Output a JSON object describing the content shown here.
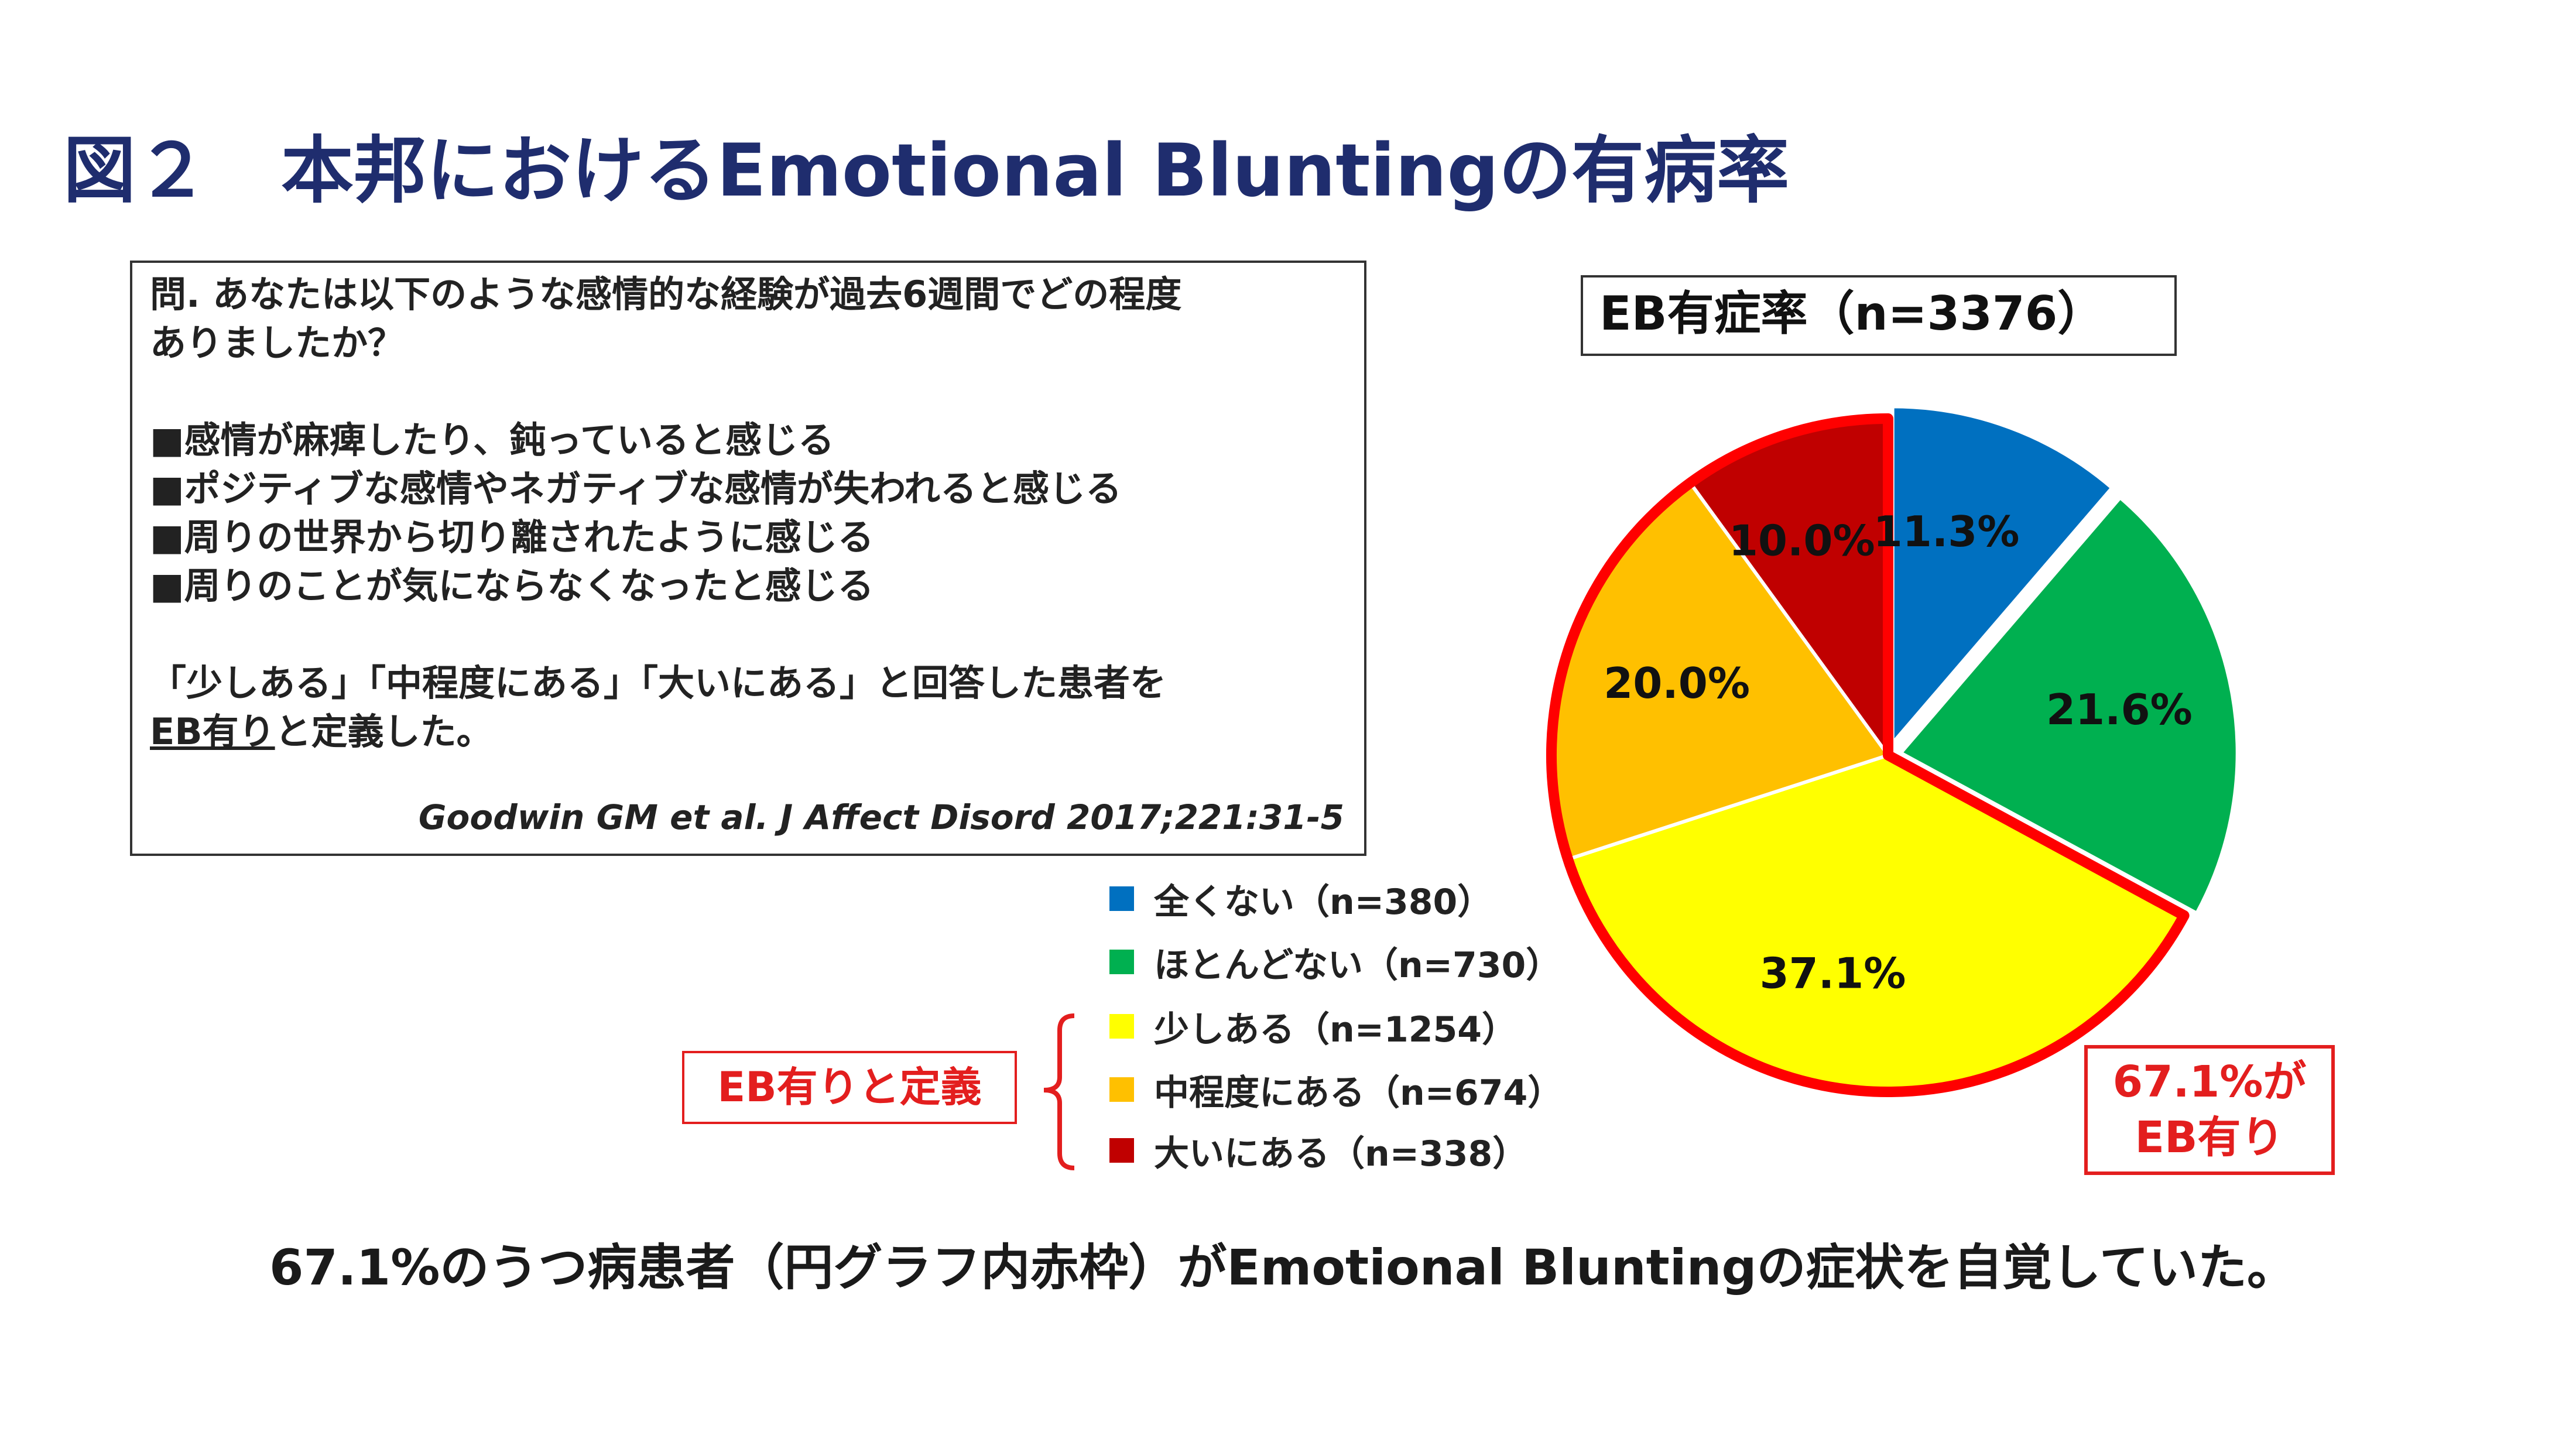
{
  "title": "図２　本邦におけるEmotional Bluntingの有病率",
  "question": {
    "lines": [
      "問. あなたは以下のような感情的な経験が過去6週間でどの程度",
      "ありましたか？",
      "■感情が麻痺したり、鈍っていると感じる",
      "■ポジティブな感情やネガティブな感情が失われると感じる",
      "■周りの世界から切り離されたように感じる",
      "■周りのことが気にならなくなったと感じる",
      "「少しある」「中程度にある」「大いにある」と回答した患者を"
    ],
    "definition_underlined": "EB有り",
    "definition_rest": "と定義した。",
    "citation": "Goodwin GM et al. J Affect Disord 2017;221:31-5"
  },
  "chart_data": {
    "type": "pie",
    "title": "EB有症率（n=3376）",
    "slices": [
      {
        "label": "全くない（n=380）",
        "value": 11.3,
        "display": "11.3%",
        "color": "#0070c0",
        "eb": false
      },
      {
        "label": "ほとんどない（n=730）",
        "value": 21.6,
        "display": "21.6%",
        "color": "#00b050",
        "eb": false
      },
      {
        "label": "少しある（n=1254）",
        "value": 37.1,
        "display": "37.1%",
        "color": "#ffff00",
        "eb": true
      },
      {
        "label": "中程度にある（n=674）",
        "value": 20.0,
        "display": "20.0%",
        "color": "#ffc000",
        "eb": true
      },
      {
        "label": "大いにある（n=338）",
        "value": 10.0,
        "display": "10.0%",
        "color": "#c00000",
        "eb": true
      }
    ],
    "start": "12 o'clock",
    "direction": "clockwise",
    "highlight_color": "#ff0000"
  },
  "eb_definition_label": "EB有りと定義",
  "eb_rate_lines": [
    "67.1%が",
    "EB有り"
  ],
  "conclusion": "67.1%のうつ病患者（円グラフ内赤枠）がEmotional Bluntingの症状を自覚していた。"
}
